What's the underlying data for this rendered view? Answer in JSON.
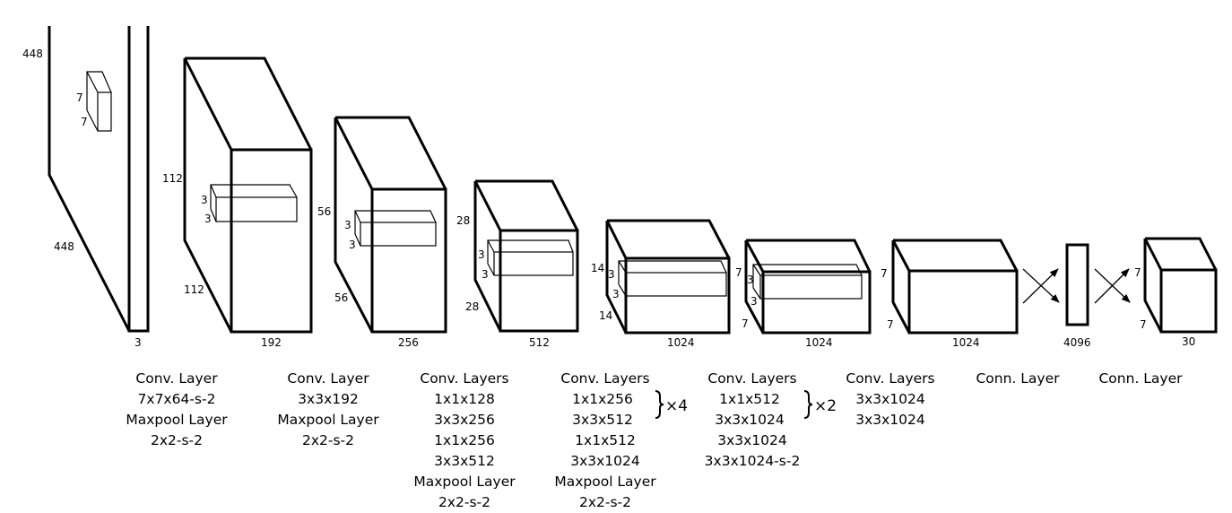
{
  "dimensions": {
    "input": [
      "448",
      "7",
      "7",
      "448",
      "3"
    ],
    "b2": [
      "112",
      "3",
      "3",
      "112",
      "192"
    ],
    "b3": [
      "56",
      "3",
      "3",
      "56",
      "256"
    ],
    "b4": [
      "28",
      "3",
      "3",
      "28",
      "512"
    ],
    "b5": [
      "14",
      "3",
      "3",
      "14",
      "1024"
    ],
    "b6": [
      "7",
      "3",
      "3",
      "7",
      "1024"
    ],
    "b7": [
      "7",
      "7",
      "1024"
    ],
    "fc": [
      "4096"
    ],
    "out": [
      "7",
      "7",
      "30"
    ]
  },
  "captions": [
    [
      "Conv. Layer",
      "7x7x64-s-2",
      "Maxpool Layer",
      "2x2-s-2"
    ],
    [
      "Conv. Layer",
      "3x3x192",
      "Maxpool Layer",
      "2x2-s-2"
    ],
    [
      "Conv. Layers",
      "1x1x128",
      "3x3x256",
      "1x1x256",
      "3x3x512",
      "Maxpool Layer",
      "2x2-s-2"
    ],
    [
      "Conv. Layers",
      "1x1x256",
      "3x3x512",
      "1x1x512",
      "3x3x1024",
      "Maxpool Layer",
      "2x2-s-2"
    ],
    [
      "Conv. Layers",
      "1x1x512",
      "3x3x1024",
      "3x3x1024",
      "3x3x1024-s-2"
    ],
    [
      "Conv. Layers",
      "3x3x1024",
      "3x3x1024"
    ],
    [
      "Conn. Layer"
    ],
    [
      "Conn. Layer"
    ]
  ],
  "repeats": {
    "b4": "×4",
    "b5": "×2"
  }
}
